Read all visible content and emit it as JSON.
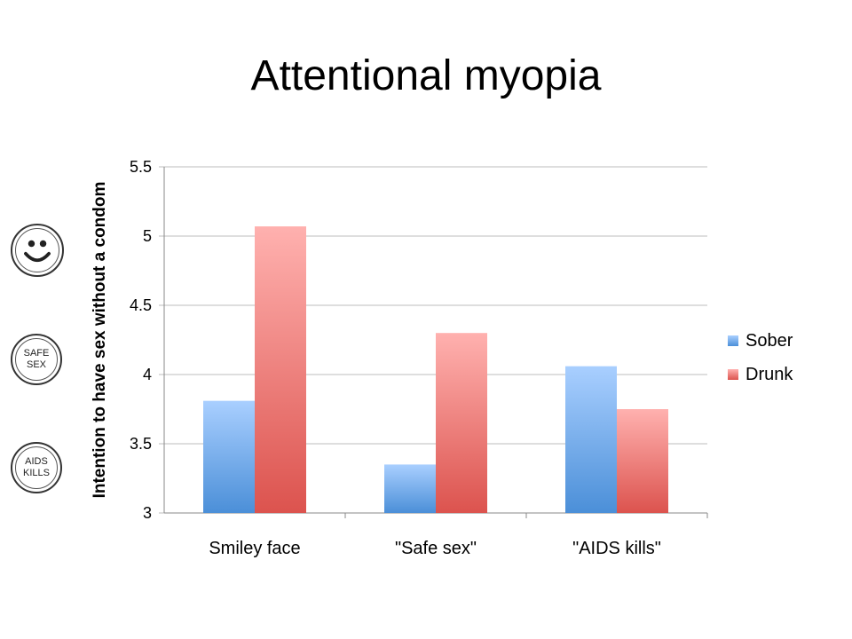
{
  "slide": {
    "title": "Attentional myopia"
  },
  "badges": {
    "smiley": "smiley-face-icon",
    "safe_sex": [
      "SAFE",
      "SEX"
    ],
    "aids_kills": [
      "AIDS",
      "KILLS"
    ]
  },
  "chart_data": {
    "type": "bar",
    "categories": [
      "Smiley face",
      "\"Safe sex\"",
      "\"AIDS kills\""
    ],
    "series": [
      {
        "name": "Sober",
        "values": [
          3.81,
          3.35,
          4.06
        ],
        "color_top": "#a9cfff",
        "color_bottom": "#4b8fd8"
      },
      {
        "name": "Drunk",
        "values": [
          5.07,
          4.3,
          3.75
        ],
        "color_top": "#ffb1af",
        "color_bottom": "#dc534e"
      }
    ],
    "ylim": [
      3,
      5.5
    ],
    "yticks": [
      "3",
      "3.5",
      "4",
      "4.5",
      "5",
      "5.5"
    ],
    "ylabel": "Intention to have sex without a condom",
    "grid": true,
    "legend": "right"
  }
}
